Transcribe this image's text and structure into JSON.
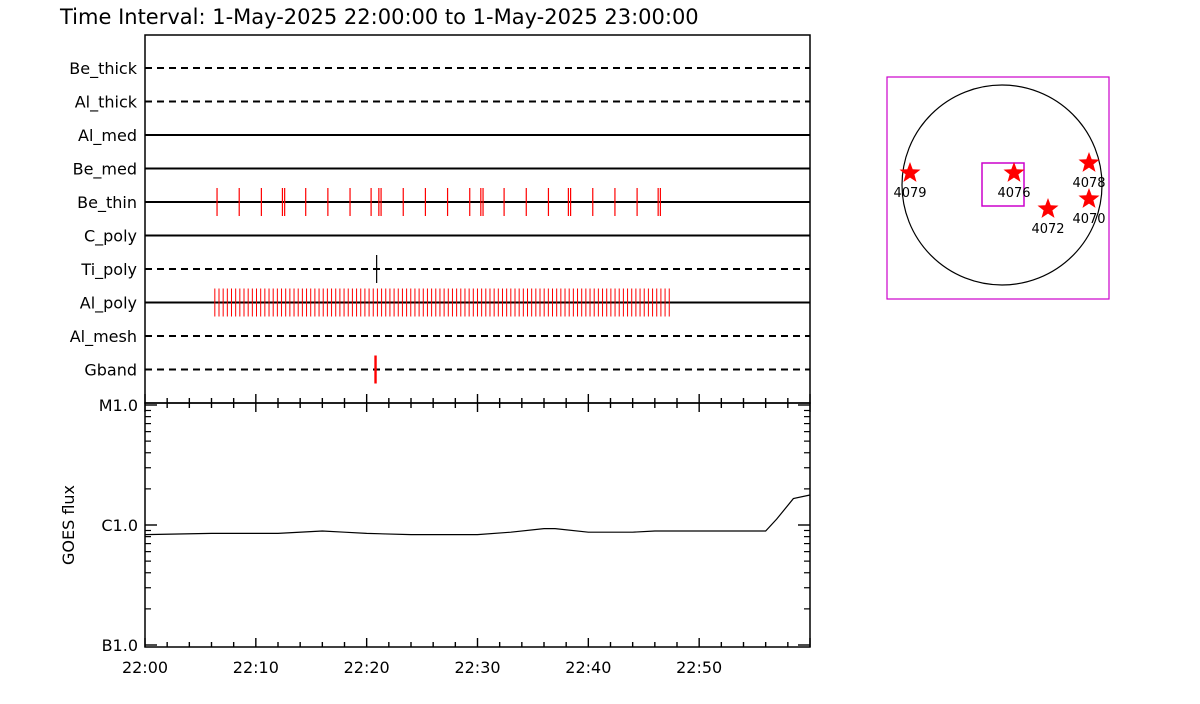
{
  "title": "Time Interval:  1-May-2025 22:00:00 to  1-May-2025 23:00:00",
  "chart_data": [
    {
      "type": "event-timeline",
      "x_unit": "minutes after 22:00",
      "xlim": [
        0,
        60
      ],
      "rows": [
        {
          "name": "Be_thick",
          "style": "dashed",
          "events": []
        },
        {
          "name": "Al_thick",
          "style": "dashed",
          "events": []
        },
        {
          "name": "Al_med",
          "style": "solid",
          "events": []
        },
        {
          "name": "Be_med",
          "style": "solid",
          "events": []
        },
        {
          "name": "Be_thin",
          "style": "solid",
          "events": [
            6.5,
            8.5,
            10.5,
            12.4,
            12.6,
            14.5,
            16.5,
            18.5,
            20.4,
            21.1,
            21.3,
            23.3,
            25.3,
            27.3,
            29.3,
            30.3,
            30.5,
            32.4,
            34.4,
            36.4,
            38.2,
            38.4,
            40.4,
            42.4,
            44.4,
            46.3,
            46.5
          ]
        },
        {
          "name": "C_poly",
          "style": "solid",
          "events": []
        },
        {
          "name": "Ti_poly",
          "style": "dashed",
          "events": [
            20.9
          ],
          "event_color": "#000000"
        },
        {
          "name": "Al_poly",
          "style": "solid",
          "events": []
        },
        {
          "name": "Al_mesh",
          "style": "dashed",
          "events": []
        },
        {
          "name": "Gband",
          "style": "dashed",
          "events": [
            20.8
          ]
        }
      ],
      "al_poly_event_range": [
        6.3,
        47.3
      ],
      "al_poly_event_count": 110,
      "event_color": "#ff0000"
    },
    {
      "type": "line",
      "ylabel": "GOES flux",
      "yscale": "log",
      "ylim_labels": [
        "B1.0",
        "C1.0",
        "M1.0"
      ],
      "ytick_labels": [
        "B1.0",
        "C1.0",
        "M1.0"
      ],
      "x_tick_labels": [
        "22:00",
        "22:10",
        "22:20",
        "22:30",
        "22:40",
        "22:50"
      ],
      "x_unit": "minutes after 22:00",
      "xlim": [
        0,
        60
      ],
      "series": [
        {
          "color": "#000000",
          "x": [
            0,
            6,
            12,
            16,
            18,
            20,
            24,
            30,
            33,
            36,
            37,
            40,
            44,
            46,
            50,
            52,
            56,
            57,
            58.5,
            60
          ],
          "y_log10_rel_C": [
            -0.08,
            -0.07,
            -0.07,
            -0.05,
            -0.06,
            -0.07,
            -0.08,
            -0.08,
            -0.06,
            -0.03,
            -0.03,
            -0.06,
            -0.06,
            -0.05,
            -0.05,
            -0.05,
            -0.05,
            0.05,
            0.22,
            0.25
          ]
        }
      ]
    },
    {
      "type": "scatter",
      "description_labels": [
        "4079",
        "4076",
        "4078",
        "4072",
        "4070"
      ],
      "points": [
        {
          "label": "4079",
          "x": -0.92,
          "y": 0.12
        },
        {
          "label": "4076",
          "x": 0.12,
          "y": 0.12
        },
        {
          "label": "4078",
          "x": 0.87,
          "y": 0.22
        },
        {
          "label": "4072",
          "x": 0.46,
          "y": -0.24
        },
        {
          "label": "4070",
          "x": 0.87,
          "y": -0.14
        }
      ],
      "marker_color": "#ff0000",
      "frame_color": "#cc00cc"
    }
  ]
}
